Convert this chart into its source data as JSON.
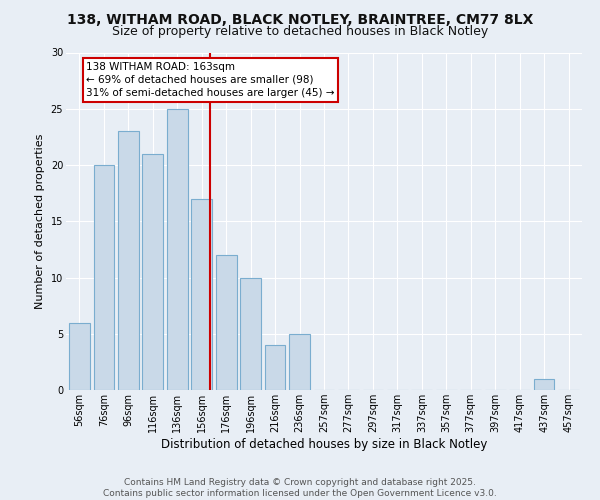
{
  "title1": "138, WITHAM ROAD, BLACK NOTLEY, BRAINTREE, CM77 8LX",
  "title2": "Size of property relative to detached houses in Black Notley",
  "xlabel": "Distribution of detached houses by size in Black Notley",
  "ylabel": "Number of detached properties",
  "categories": [
    "56sqm",
    "76sqm",
    "96sqm",
    "116sqm",
    "136sqm",
    "156sqm",
    "176sqm",
    "196sqm",
    "216sqm",
    "236sqm",
    "257sqm",
    "277sqm",
    "297sqm",
    "317sqm",
    "337sqm",
    "357sqm",
    "377sqm",
    "397sqm",
    "417sqm",
    "437sqm",
    "457sqm"
  ],
  "values": [
    6,
    20,
    23,
    21,
    25,
    17,
    12,
    10,
    4,
    5,
    0,
    0,
    0,
    0,
    0,
    0,
    0,
    0,
    0,
    1,
    0
  ],
  "bar_color": "#c9d9e8",
  "bar_edge_color": "#7aadcf",
  "vline_color": "#cc0000",
  "annotation_text": "138 WITHAM ROAD: 163sqm\n← 69% of detached houses are smaller (98)\n31% of semi-detached houses are larger (45) →",
  "annotation_box_color": "#ffffff",
  "annotation_box_edge": "#cc0000",
  "background_color": "#e8eef5",
  "plot_bg_color": "#e8eef5",
  "grid_color": "#ffffff",
  "ylim": [
    0,
    30
  ],
  "yticks": [
    0,
    5,
    10,
    15,
    20,
    25,
    30
  ],
  "footer": "Contains HM Land Registry data © Crown copyright and database right 2025.\nContains public sector information licensed under the Open Government Licence v3.0.",
  "title_fontsize": 10,
  "subtitle_fontsize": 9,
  "tick_fontsize": 7,
  "ylabel_fontsize": 8,
  "xlabel_fontsize": 8.5,
  "footer_fontsize": 6.5,
  "ann_fontsize": 7.5
}
